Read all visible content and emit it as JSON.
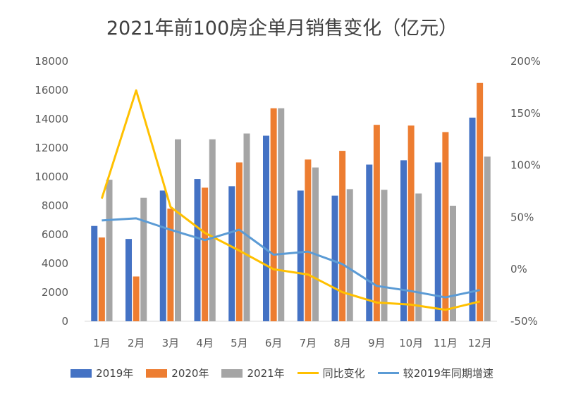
{
  "chart_data": {
    "type": "bar+line",
    "title": "2021年前100房企单月销售变化（亿元）",
    "categories": [
      "1月",
      "2月",
      "3月",
      "4月",
      "5月",
      "6月",
      "7月",
      "8月",
      "9月",
      "10月",
      "11月",
      "12月"
    ],
    "left_axis": {
      "ylim": [
        0,
        18000
      ],
      "ticks": [
        "0",
        "2000",
        "4000",
        "6000",
        "8000",
        "10000",
        "12000",
        "14000",
        "16000",
        "18000"
      ]
    },
    "right_axis": {
      "ylim": [
        -50,
        200
      ],
      "ticks": [
        "-50%",
        "0%",
        "50%",
        "100%",
        "150%",
        "200%"
      ]
    },
    "bar_series": [
      {
        "name": "2019年",
        "color": "#4472C4",
        "values": [
          6600,
          5700,
          9050,
          9850,
          9350,
          12850,
          9050,
          8700,
          10850,
          11150,
          11000,
          14100
        ]
      },
      {
        "name": "2020年",
        "color": "#ED7D31",
        "values": [
          5800,
          3100,
          7800,
          9250,
          11000,
          14750,
          11200,
          11800,
          13600,
          13550,
          13100,
          16500
        ]
      },
      {
        "name": "2021年",
        "color": "#A5A5A5",
        "values": [
          9800,
          8550,
          12600,
          12600,
          13000,
          14750,
          10650,
          9150,
          9100,
          8850,
          8000,
          11400
        ]
      }
    ],
    "line_series": [
      {
        "name": "同比变化",
        "color": "#FFC000",
        "axis": "right",
        "values": [
          68,
          172,
          60,
          35,
          18,
          0,
          -5,
          -22,
          -32,
          -34,
          -39,
          -31
        ]
      },
      {
        "name": "较2019年同期增速",
        "color": "#5B9BD5",
        "axis": "right",
        "values": [
          47,
          49,
          38,
          28,
          38,
          14,
          17,
          5,
          -16,
          -21,
          -27,
          -20
        ]
      }
    ],
    "legend_position": "bottom",
    "grid": false
  }
}
